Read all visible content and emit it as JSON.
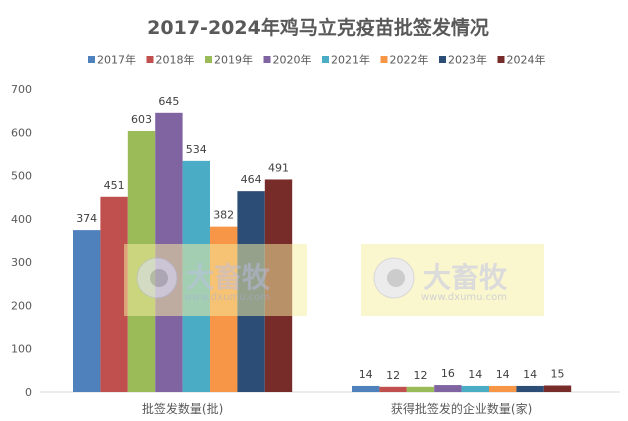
{
  "chart_data": {
    "type": "bar",
    "title": "2017-2024年鸡马立克疫苗批签发情况",
    "categories": [
      "批签发数量(批)",
      "获得批签发的企业数量(家)"
    ],
    "series": [
      {
        "name": "2017年",
        "color": "#4F81BD",
        "values": [
          374,
          14
        ]
      },
      {
        "name": "2018年",
        "color": "#C0504D",
        "values": [
          451,
          12
        ]
      },
      {
        "name": "2019年",
        "color": "#9BBB59",
        "values": [
          603,
          12
        ]
      },
      {
        "name": "2020年",
        "color": "#8064A2",
        "values": [
          645,
          16
        ]
      },
      {
        "name": "2021年",
        "color": "#4BACC6",
        "values": [
          534,
          14
        ]
      },
      {
        "name": "2022年",
        "color": "#F79646",
        "values": [
          382,
          14
        ]
      },
      {
        "name": "2023年",
        "color": "#2C4D75",
        "values": [
          464,
          14
        ]
      },
      {
        "name": "2024年",
        "color": "#772C2A",
        "values": [
          491,
          15
        ]
      }
    ],
    "ylim": [
      0,
      700
    ],
    "yticks": [
      0,
      100,
      200,
      300,
      400,
      500,
      600,
      700
    ],
    "grid": false,
    "legend": "top",
    "data_labels": true
  },
  "watermark": {
    "logo": "大畜牧",
    "url": "www.dxumu.com"
  }
}
